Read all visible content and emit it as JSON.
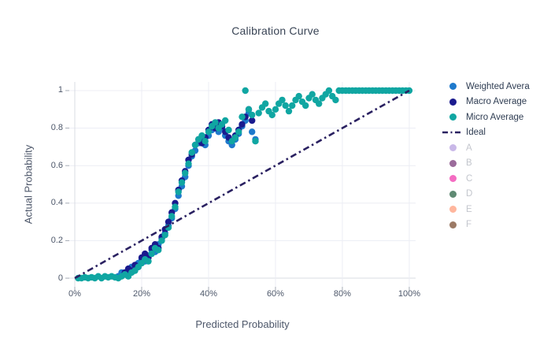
{
  "chart_data": {
    "type": "scatter",
    "title": "Calibration Curve",
    "xlabel": "Predicted Probability",
    "ylabel": "Actual Probability",
    "xlim": [
      -1.65,
      101.9
    ],
    "ylim": [
      -0.046,
      1.046
    ],
    "grid": true,
    "legend_position": "right",
    "xticks": [
      {
        "v": 0,
        "label": "0%"
      },
      {
        "v": 20,
        "label": "20%"
      },
      {
        "v": 40,
        "label": "40%"
      },
      {
        "v": 60,
        "label": "60%"
      },
      {
        "v": 80,
        "label": "80%"
      },
      {
        "v": 100,
        "label": "100%"
      }
    ],
    "yticks": [
      {
        "v": 0,
        "label": "0"
      },
      {
        "v": 0.2,
        "label": "0.2"
      },
      {
        "v": 0.4,
        "label": "0.4"
      },
      {
        "v": 0.6,
        "label": "0.6"
      },
      {
        "v": 0.8,
        "label": "0.8"
      },
      {
        "v": 1,
        "label": "1"
      }
    ],
    "series": [
      {
        "name": "Weighted Avera",
        "color": "#1e79cc",
        "points": [
          [
            13,
            0.01
          ],
          [
            14,
            0.03
          ],
          [
            15,
            0.02
          ],
          [
            16,
            0.04
          ],
          [
            17,
            0.06
          ],
          [
            18,
            0.05
          ],
          [
            19,
            0.08
          ],
          [
            20,
            0.1
          ],
          [
            21,
            0.09
          ],
          [
            22,
            0.12
          ],
          [
            23,
            0.15
          ],
          [
            24,
            0.14
          ],
          [
            25,
            0.18
          ],
          [
            26,
            0.21
          ],
          [
            27,
            0.24
          ],
          [
            28,
            0.28
          ],
          [
            29,
            0.32
          ],
          [
            30,
            0.37
          ],
          [
            31,
            0.44
          ],
          [
            32,
            0.49
          ],
          [
            33,
            0.54
          ],
          [
            34,
            0.6
          ],
          [
            35,
            0.65
          ],
          [
            36,
            0.68
          ],
          [
            37,
            0.72
          ],
          [
            38,
            0.74
          ],
          [
            39,
            0.71
          ],
          [
            40,
            0.76
          ],
          [
            41,
            0.79
          ],
          [
            42,
            0.81
          ],
          [
            43,
            0.78
          ],
          [
            44,
            0.8
          ],
          [
            45,
            0.76
          ],
          [
            46,
            0.73
          ],
          [
            47,
            0.71
          ],
          [
            48,
            0.74
          ],
          [
            49,
            0.77
          ],
          [
            50,
            0.81
          ],
          [
            51,
            0.84
          ],
          [
            52,
            0.88
          ],
          [
            53,
            0.78
          ],
          [
            54,
            0.74
          ]
        ]
      },
      {
        "name": "Macro Average",
        "color": "#1a1a8e",
        "points": [
          [
            15,
            0.03
          ],
          [
            16,
            0.05
          ],
          [
            17,
            0.04
          ],
          [
            18,
            0.07
          ],
          [
            19,
            0.06
          ],
          [
            20,
            0.11
          ],
          [
            21,
            0.13
          ],
          [
            22,
            0.11
          ],
          [
            23,
            0.16
          ],
          [
            24,
            0.18
          ],
          [
            25,
            0.16
          ],
          [
            26,
            0.22
          ],
          [
            27,
            0.26
          ],
          [
            28,
            0.3
          ],
          [
            29,
            0.35
          ],
          [
            30,
            0.4
          ],
          [
            31,
            0.47
          ],
          [
            32,
            0.52
          ],
          [
            33,
            0.57
          ],
          [
            34,
            0.63
          ],
          [
            35,
            0.66
          ],
          [
            36,
            0.71
          ],
          [
            37,
            0.74
          ],
          [
            38,
            0.72
          ],
          [
            39,
            0.75
          ],
          [
            40,
            0.79
          ],
          [
            41,
            0.82
          ],
          [
            42,
            0.8
          ],
          [
            43,
            0.83
          ],
          [
            44,
            0.81
          ],
          [
            45,
            0.78
          ],
          [
            46,
            0.75
          ],
          [
            47,
            0.73
          ],
          [
            48,
            0.76
          ],
          [
            49,
            0.79
          ],
          [
            50,
            0.82
          ],
          [
            51,
            0.86
          ],
          [
            52,
            0.9
          ],
          [
            53,
            0.84
          ]
        ]
      },
      {
        "name": "Micro Average",
        "color": "#10a6a2",
        "points": [
          [
            1,
            0
          ],
          [
            2,
            0
          ],
          [
            3,
            0.005
          ],
          [
            4,
            0
          ],
          [
            5,
            0.005
          ],
          [
            6,
            0
          ],
          [
            7,
            0.01
          ],
          [
            8,
            0
          ],
          [
            9,
            0.01
          ],
          [
            10,
            0.005
          ],
          [
            11,
            0.01
          ],
          [
            12,
            0.005
          ],
          [
            13,
            0
          ],
          [
            14,
            0.01
          ],
          [
            15,
            0.02
          ],
          [
            16,
            0.01
          ],
          [
            17,
            0.03
          ],
          [
            18,
            0.04
          ],
          [
            19,
            0.06
          ],
          [
            20,
            0.08
          ],
          [
            21,
            0.1
          ],
          [
            22,
            0.09
          ],
          [
            23,
            0.13
          ],
          [
            24,
            0.16
          ],
          [
            25,
            0.15
          ],
          [
            26,
            0.2
          ],
          [
            27,
            0.23
          ],
          [
            28,
            0.27
          ],
          [
            29,
            0.33
          ],
          [
            30,
            0.38
          ],
          [
            31,
            0.46
          ],
          [
            32,
            0.51
          ],
          [
            33,
            0.56
          ],
          [
            34,
            0.61
          ],
          [
            35,
            0.67
          ],
          [
            36,
            0.71
          ],
          [
            37,
            0.74
          ],
          [
            38,
            0.76
          ],
          [
            39,
            0.73
          ],
          [
            40,
            0.78
          ],
          [
            41,
            0.81
          ],
          [
            42,
            0.83
          ],
          [
            43,
            0.8
          ],
          [
            44,
            0.82
          ],
          [
            45,
            0.84
          ],
          [
            46,
            0.79
          ],
          [
            47,
            0.73
          ],
          [
            48,
            0.75
          ],
          [
            49,
            0.78
          ],
          [
            50,
            0.86
          ],
          [
            51,
            1.0
          ],
          [
            52,
            0.9
          ],
          [
            53,
            0.87
          ],
          [
            54,
            0.73
          ],
          [
            55,
            0.88
          ],
          [
            56,
            0.91
          ],
          [
            57,
            0.93
          ],
          [
            58,
            0.89
          ],
          [
            59,
            0.87
          ],
          [
            60,
            0.9
          ],
          [
            61,
            0.93
          ],
          [
            62,
            0.95
          ],
          [
            63,
            0.92
          ],
          [
            64,
            0.89
          ],
          [
            65,
            0.92
          ],
          [
            66,
            0.95
          ],
          [
            67,
            0.97
          ],
          [
            68,
            0.94
          ],
          [
            69,
            0.92
          ],
          [
            70,
            0.96
          ],
          [
            71,
            0.98
          ],
          [
            72,
            0.95
          ],
          [
            73,
            0.93
          ],
          [
            74,
            0.96
          ],
          [
            75,
            0.98
          ],
          [
            76,
            1.0
          ],
          [
            77,
            0.97
          ],
          [
            78,
            0.95
          ],
          [
            79,
            1.0
          ],
          [
            80,
            1.0
          ],
          [
            81,
            1.0
          ],
          [
            82,
            1.0
          ],
          [
            83,
            1.0
          ],
          [
            84,
            1.0
          ],
          [
            85,
            1.0
          ],
          [
            86,
            1.0
          ],
          [
            87,
            1.0
          ],
          [
            88,
            1.0
          ],
          [
            89,
            1.0
          ],
          [
            90,
            1.0
          ],
          [
            91,
            1.0
          ],
          [
            92,
            1.0
          ],
          [
            93,
            1.0
          ],
          [
            94,
            1.0
          ],
          [
            95,
            1.0
          ],
          [
            96,
            1.0
          ],
          [
            97,
            1.0
          ],
          [
            98,
            1.0
          ],
          [
            99,
            1.0
          ],
          [
            100,
            1.0
          ]
        ]
      }
    ],
    "ideal_line": {
      "name": "Ideal",
      "x": [
        0,
        100
      ],
      "y": [
        0,
        1
      ],
      "style": "dash-dot",
      "color": "#2a2161"
    }
  },
  "legend": {
    "items": [
      {
        "label": "Weighted Avera",
        "type": "dot",
        "color": "#1e79cc",
        "muted": false
      },
      {
        "label": "Macro Average",
        "type": "dot",
        "color": "#1a1a8e",
        "muted": false
      },
      {
        "label": "Micro Average",
        "type": "dot",
        "color": "#10a6a2",
        "muted": false
      },
      {
        "label": "Ideal",
        "type": "dash-dot-line",
        "color": "#2a2161",
        "muted": false
      },
      {
        "label": "A",
        "type": "dot",
        "color": "#c9b8e8",
        "muted": true
      },
      {
        "label": "B",
        "type": "dot",
        "color": "#9b6b9b",
        "muted": true
      },
      {
        "label": "C",
        "type": "dot",
        "color": "#f46cc2",
        "muted": true
      },
      {
        "label": "D",
        "type": "dot",
        "color": "#5f8a73",
        "muted": true
      },
      {
        "label": "E",
        "type": "dot",
        "color": "#ffb69d",
        "muted": true
      },
      {
        "label": "F",
        "type": "dot",
        "color": "#9c7a65",
        "muted": true
      }
    ]
  },
  "colors": {
    "grid": "#ecedf4",
    "zeroline": "#d9dce3",
    "tick": "#a5abb5",
    "text": "#4d576a",
    "title": "#3a4556"
  }
}
